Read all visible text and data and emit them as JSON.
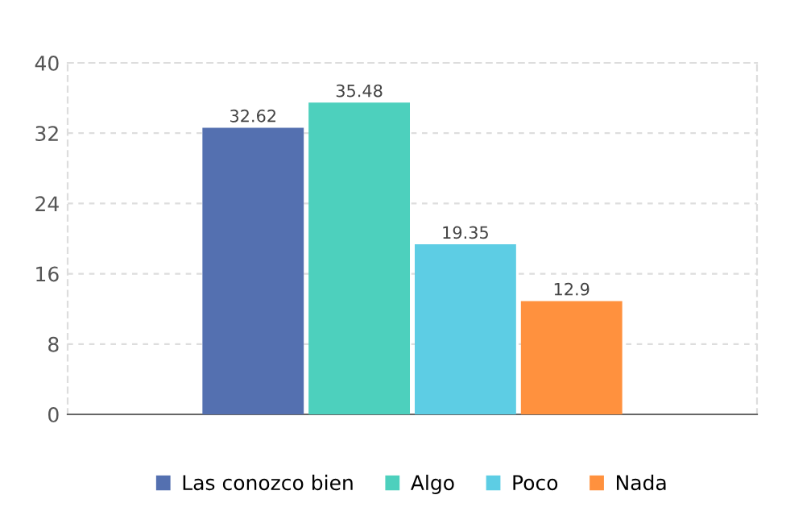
{
  "chart_data": {
    "type": "bar",
    "categories": [
      null
    ],
    "series": [
      {
        "name": "Las conozco bien",
        "color": "#5470b0",
        "values": [
          32.62
        ]
      },
      {
        "name": "Algo",
        "color": "#4dd0bd",
        "values": [
          35.48
        ]
      },
      {
        "name": "Poco",
        "color": "#5dcde4",
        "values": [
          19.35
        ]
      },
      {
        "name": "Nada",
        "color": "#ff913e",
        "values": [
          12.9
        ]
      }
    ],
    "ylim": [
      0,
      40
    ],
    "yticks": [
      0,
      8,
      16,
      24,
      32,
      40
    ],
    "grid": "y",
    "legend": "bottom",
    "data_labels": true
  }
}
